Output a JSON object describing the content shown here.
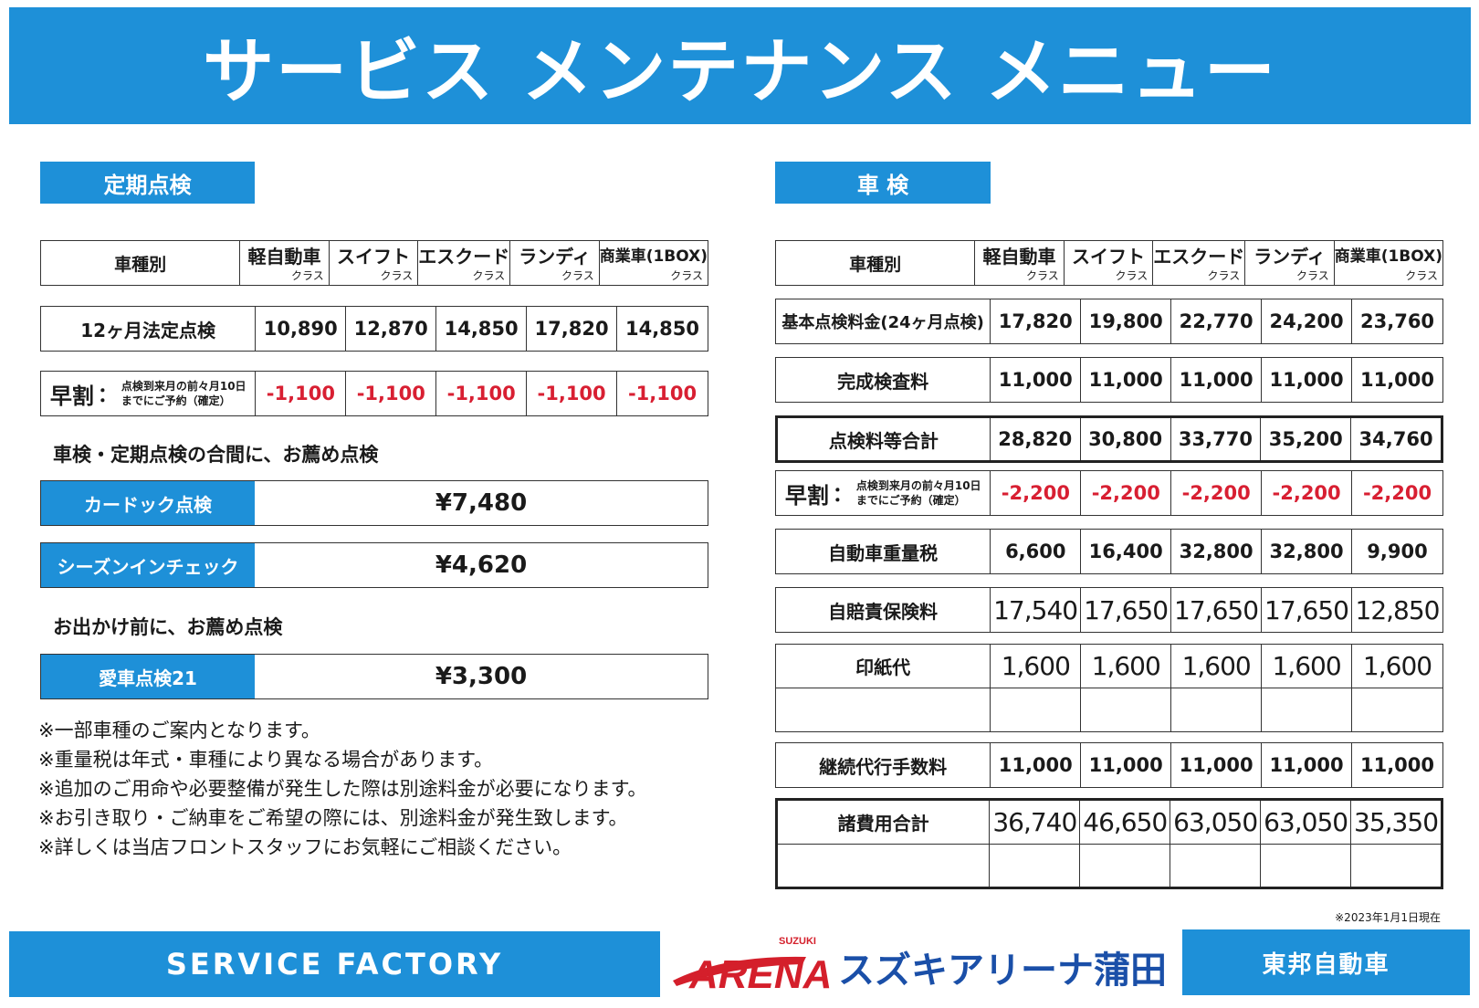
{
  "title": "サービス メンテナンス メニュー",
  "left": {
    "section_title": "定期点検",
    "header": {
      "label": "車種別",
      "classes": [
        {
          "name": "軽自動車",
          "suffix": "クラス"
        },
        {
          "name": "スイフト",
          "suffix": "クラス"
        },
        {
          "name": "エスクード",
          "suffix": "クラス"
        },
        {
          "name": "ランディ",
          "suffix": "クラス"
        },
        {
          "name": "商業車(1BOX)",
          "suffix": "クラス"
        }
      ]
    },
    "row12": {
      "label": "12ヶ月法定点検",
      "values": [
        "10,890",
        "12,870",
        "14,850",
        "17,820",
        "14,850"
      ]
    },
    "early": {
      "big": "早割",
      "colon": "：",
      "small1": "点検到来月の前々月10日",
      "small2": "までにご予約（確定）",
      "values": [
        "-1,100",
        "-1,100",
        "-1,100",
        "-1,100",
        "-1,100"
      ]
    },
    "sub1": "車検・定期点検の合間に、お薦め点検",
    "options1": [
      {
        "label": "カードック点検",
        "price": "¥7,480"
      },
      {
        "label": "シーズンインチェック",
        "price": "¥4,620"
      }
    ],
    "sub2": "お出かけ前に、お薦め点検",
    "options2": [
      {
        "label": "愛車点検21",
        "price": "¥3,300"
      }
    ],
    "notes": [
      "※一部車種のご案内となります。",
      "※重量税は年式・車種により異なる場合があります。",
      "※追加のご用命や必要整備が発生した際は別途料金が必要になります。",
      "※お引き取り・ご納車をご希望の際には、別途料金が発生致します。",
      "※詳しくは当店フロントスタッフにお気軽にご相談ください。"
    ]
  },
  "right": {
    "section_title": "車 検",
    "header": {
      "label": "車種別",
      "classes": [
        {
          "name": "軽自動車",
          "suffix": "クラス"
        },
        {
          "name": "スイフト",
          "suffix": "クラス"
        },
        {
          "name": "エスクード",
          "suffix": "クラス"
        },
        {
          "name": "ランディ",
          "suffix": "クラス"
        },
        {
          "name": "商業車(1BOX)",
          "suffix": "クラス"
        }
      ]
    },
    "rows": {
      "basic": {
        "label": "基本点検料金(24ヶ月点検)",
        "values": [
          "17,820",
          "19,800",
          "22,770",
          "24,200",
          "23,760"
        ]
      },
      "kansei": {
        "label": "完成検査料",
        "values": [
          "11,000",
          "11,000",
          "11,000",
          "11,000",
          "11,000"
        ]
      },
      "subtotal": {
        "label": "点検料等合計",
        "values": [
          "28,820",
          "30,800",
          "33,770",
          "35,200",
          "34,760"
        ]
      },
      "early": {
        "big": "早割",
        "colon": "：",
        "small1": "点検到来月の前々月10日",
        "small2": "までにご予約（確定）",
        "values": [
          "-2,200",
          "-2,200",
          "-2,200",
          "-2,200",
          "-2,200"
        ]
      },
      "tax": {
        "label": "自動車重量税",
        "values": [
          "6,600",
          "16,400",
          "32,800",
          "32,800",
          "9,900"
        ]
      },
      "insurance": {
        "label": "自賠責保険料",
        "values": [
          "17,540",
          "17,650",
          "17,650",
          "17,650",
          "12,850"
        ]
      },
      "stamp": {
        "label": "印紙代",
        "values": [
          "1,600",
          "1,600",
          "1,600",
          "1,600",
          "1,600"
        ]
      },
      "agency": {
        "label": "継続代行手数料",
        "values": [
          "11,000",
          "11,000",
          "11,000",
          "11,000",
          "11,000"
        ]
      },
      "total": {
        "label": "諸費用合計",
        "values": [
          "36,740",
          "46,650",
          "63,050",
          "63,050",
          "35,350"
        ]
      }
    }
  },
  "date_note": "※2023年1月1日現在",
  "footer": {
    "left": "SERVICE FACTORY",
    "logo_text": "ARENA",
    "logo_small": "SUZUKI",
    "store": "スズキアリーナ蒲田",
    "right": "東邦自動車"
  },
  "colors": {
    "brand_blue": "#1e90d8",
    "discount_red": "#d81f32",
    "logo_red": "#d41f2b",
    "store_blue": "#1a4fa8"
  }
}
